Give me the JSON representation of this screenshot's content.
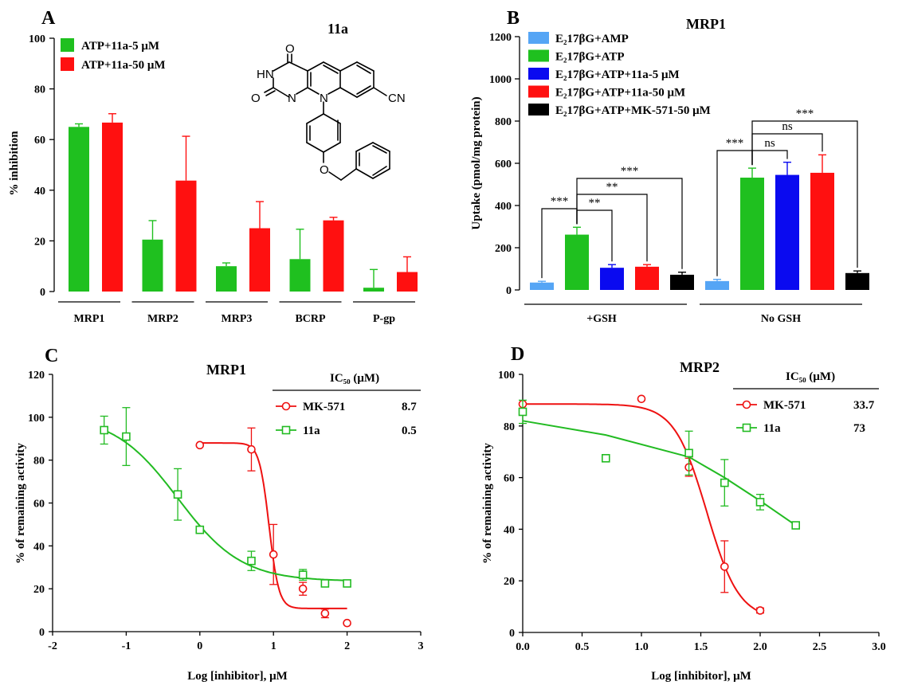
{
  "chart_data": [
    {
      "panel": "A",
      "type": "bar",
      "title": "11a",
      "ylabel": "% inhibition",
      "ylim": [
        0,
        100
      ],
      "yticks": [
        0,
        20,
        40,
        60,
        80,
        100
      ],
      "categories": [
        "MRP1",
        "MRP2",
        "MRP3",
        "BCRP",
        "P-gp"
      ],
      "series": [
        {
          "name": "ATP+11a-5 μM",
          "color": "#1FC01F",
          "values": [
            65,
            20.5,
            10,
            12.8,
            1.5
          ],
          "errors": [
            1.2,
            7.5,
            1.3,
            11.8,
            7.2
          ]
        },
        {
          "name": "ATP+11a-50 μM",
          "color": "#FF1010",
          "values": [
            66.7,
            43.8,
            25,
            28.1,
            7.7
          ],
          "errors": [
            3.5,
            17.5,
            10.5,
            1.2,
            6
          ]
        }
      ],
      "structure_labels": {
        "o1": "O",
        "nh": "HN",
        "o2": "O",
        "n1": "N",
        "n2": "N",
        "cn": "CN",
        "o3": "O"
      }
    },
    {
      "panel": "B",
      "type": "bar",
      "title": "MRP1",
      "ylabel": "Uptake (pmol/mg protein)",
      "ylim": [
        0,
        1200
      ],
      "yticks": [
        0,
        200,
        400,
        600,
        800,
        1000,
        1200
      ],
      "groups": [
        "+GSH",
        "No GSH"
      ],
      "series": [
        {
          "name": "E₂17βG+AMP",
          "color": "#55A5F5",
          "values": [
            35,
            42
          ],
          "errors": [
            6,
            8
          ]
        },
        {
          "name": "E₂17βG+ATP",
          "color": "#1FC01F",
          "values": [
            262,
            532
          ],
          "errors": [
            35,
            45
          ]
        },
        {
          "name": "E₂17βG+ATP+11a-5 μM",
          "color": "#0A0AF0",
          "values": [
            105,
            545
          ],
          "errors": [
            15,
            60
          ]
        },
        {
          "name": "E₂17βG+ATP+11a-50 μM",
          "color": "#FF1010",
          "values": [
            110,
            555
          ],
          "errors": [
            10,
            85
          ]
        },
        {
          "name": "E₂17βG+ATP+MK-571-50 μM",
          "color": "#000000",
          "values": [
            72,
            80
          ],
          "errors": [
            12,
            10
          ]
        }
      ],
      "significance": {
        "g1": [
          "***",
          "**",
          "**",
          "***"
        ],
        "g2": [
          "***",
          "ns",
          "ns",
          "***"
        ]
      }
    },
    {
      "panel": "C",
      "type": "line",
      "title": "MRP1",
      "xlabel": "Log [inhibitor], μM",
      "ylabel": "% of remaining activity",
      "xlim": [
        -2,
        3
      ],
      "ylim": [
        0,
        120
      ],
      "xticks": [
        -2,
        -1,
        0,
        1,
        2,
        3
      ],
      "yticks": [
        0,
        20,
        40,
        60,
        80,
        100,
        120
      ],
      "ic50_header": "IC₅₀ (μM)",
      "series": [
        {
          "name": "MK-571",
          "color": "#EE1111",
          "marker": "circle",
          "ic50": "8.7",
          "points": [
            {
              "x": 0,
              "y": 87,
              "err": 0
            },
            {
              "x": 0.7,
              "y": 85,
              "err": 10
            },
            {
              "x": 1.0,
              "y": 36,
              "err": 14
            },
            {
              "x": 1.4,
              "y": 20,
              "err": 3
            },
            {
              "x": 1.7,
              "y": 8.5,
              "err": 2
            },
            {
              "x": 2.0,
              "y": 4,
              "err": 0
            }
          ],
          "fit": {
            "top": 88,
            "bottom": 10.8,
            "logic50": 0.94,
            "hill": 6.5,
            "x_range": [
              0,
              2
            ]
          }
        },
        {
          "name": "11a",
          "color": "#22BB22",
          "marker": "square",
          "ic50": "0.5",
          "points": [
            {
              "x": -1.3,
              "y": 94,
              "err": 6.5
            },
            {
              "x": -1.0,
              "y": 91,
              "err": 13.5
            },
            {
              "x": -0.3,
              "y": 64,
              "err": 12
            },
            {
              "x": 0,
              "y": 47.5,
              "err": 0
            },
            {
              "x": 0.7,
              "y": 33,
              "err": 4.5
            },
            {
              "x": 1.4,
              "y": 26.5,
              "err": 2.5
            },
            {
              "x": 1.7,
              "y": 22.5,
              "err": 0
            },
            {
              "x": 2.0,
              "y": 22.5,
              "err": 0
            }
          ],
          "fit": {
            "top": 101,
            "bottom": 23.5,
            "logic50": -0.3,
            "hill": 1.0,
            "x_range": [
              -1.3,
              2.0
            ]
          }
        }
      ]
    },
    {
      "panel": "D",
      "type": "line",
      "title": "MRP2",
      "xlabel": "Log [inhibitor], μM",
      "ylabel": "% of remaining activity",
      "xlim": [
        0,
        3
      ],
      "ylim": [
        0,
        100
      ],
      "xticks": [
        0,
        0.5,
        1.0,
        1.5,
        2.0,
        2.5,
        3.0
      ],
      "xtick_labels": [
        "0.0",
        "0.5",
        "1.0",
        "1.5",
        "2.0",
        "2.5",
        "3.0"
      ],
      "yticks": [
        0,
        20,
        40,
        60,
        80,
        100
      ],
      "ic50_header": "IC₅₀ (μM)",
      "series": [
        {
          "name": "MK-571",
          "color": "#EE1111",
          "marker": "circle",
          "ic50": "33.7",
          "points": [
            {
              "x": 0,
              "y": 88.5,
              "err": 0
            },
            {
              "x": 1.0,
              "y": 90.5,
              "err": 0
            },
            {
              "x": 1.4,
              "y": 64,
              "err": 3.5
            },
            {
              "x": 1.7,
              "y": 25.5,
              "err": 10
            },
            {
              "x": 2.0,
              "y": 8.5,
              "err": 1
            }
          ],
          "fit": {
            "top": 88.5,
            "bottom": 5,
            "logic50": 1.55,
            "hill": 3.2,
            "x_range": [
              0,
              2.0
            ]
          }
        },
        {
          "name": "11a",
          "color": "#22BB22",
          "marker": "square",
          "ic50": "73",
          "points": [
            {
              "x": 0,
              "y": 85.5,
              "err": 4.5
            },
            {
              "x": 0.7,
              "y": 67.5,
              "err": 0
            },
            {
              "x": 1.4,
              "y": 69.5,
              "err": 8.5
            },
            {
              "x": 1.7,
              "y": 58,
              "err": 9
            },
            {
              "x": 2.0,
              "y": 50.5,
              "err": 3
            },
            {
              "x": 2.3,
              "y": 41.5,
              "err": 0
            }
          ],
          "fit": {
            "linear": true,
            "points": [
              [
                0,
                82
              ],
              [
                0.7,
                76.5
              ],
              [
                1.4,
                68
              ],
              [
                1.7,
                60
              ],
              [
                2.0,
                51
              ],
              [
                2.3,
                41.5
              ]
            ],
            "x_range": [
              0,
              2.3
            ]
          }
        }
      ]
    }
  ]
}
